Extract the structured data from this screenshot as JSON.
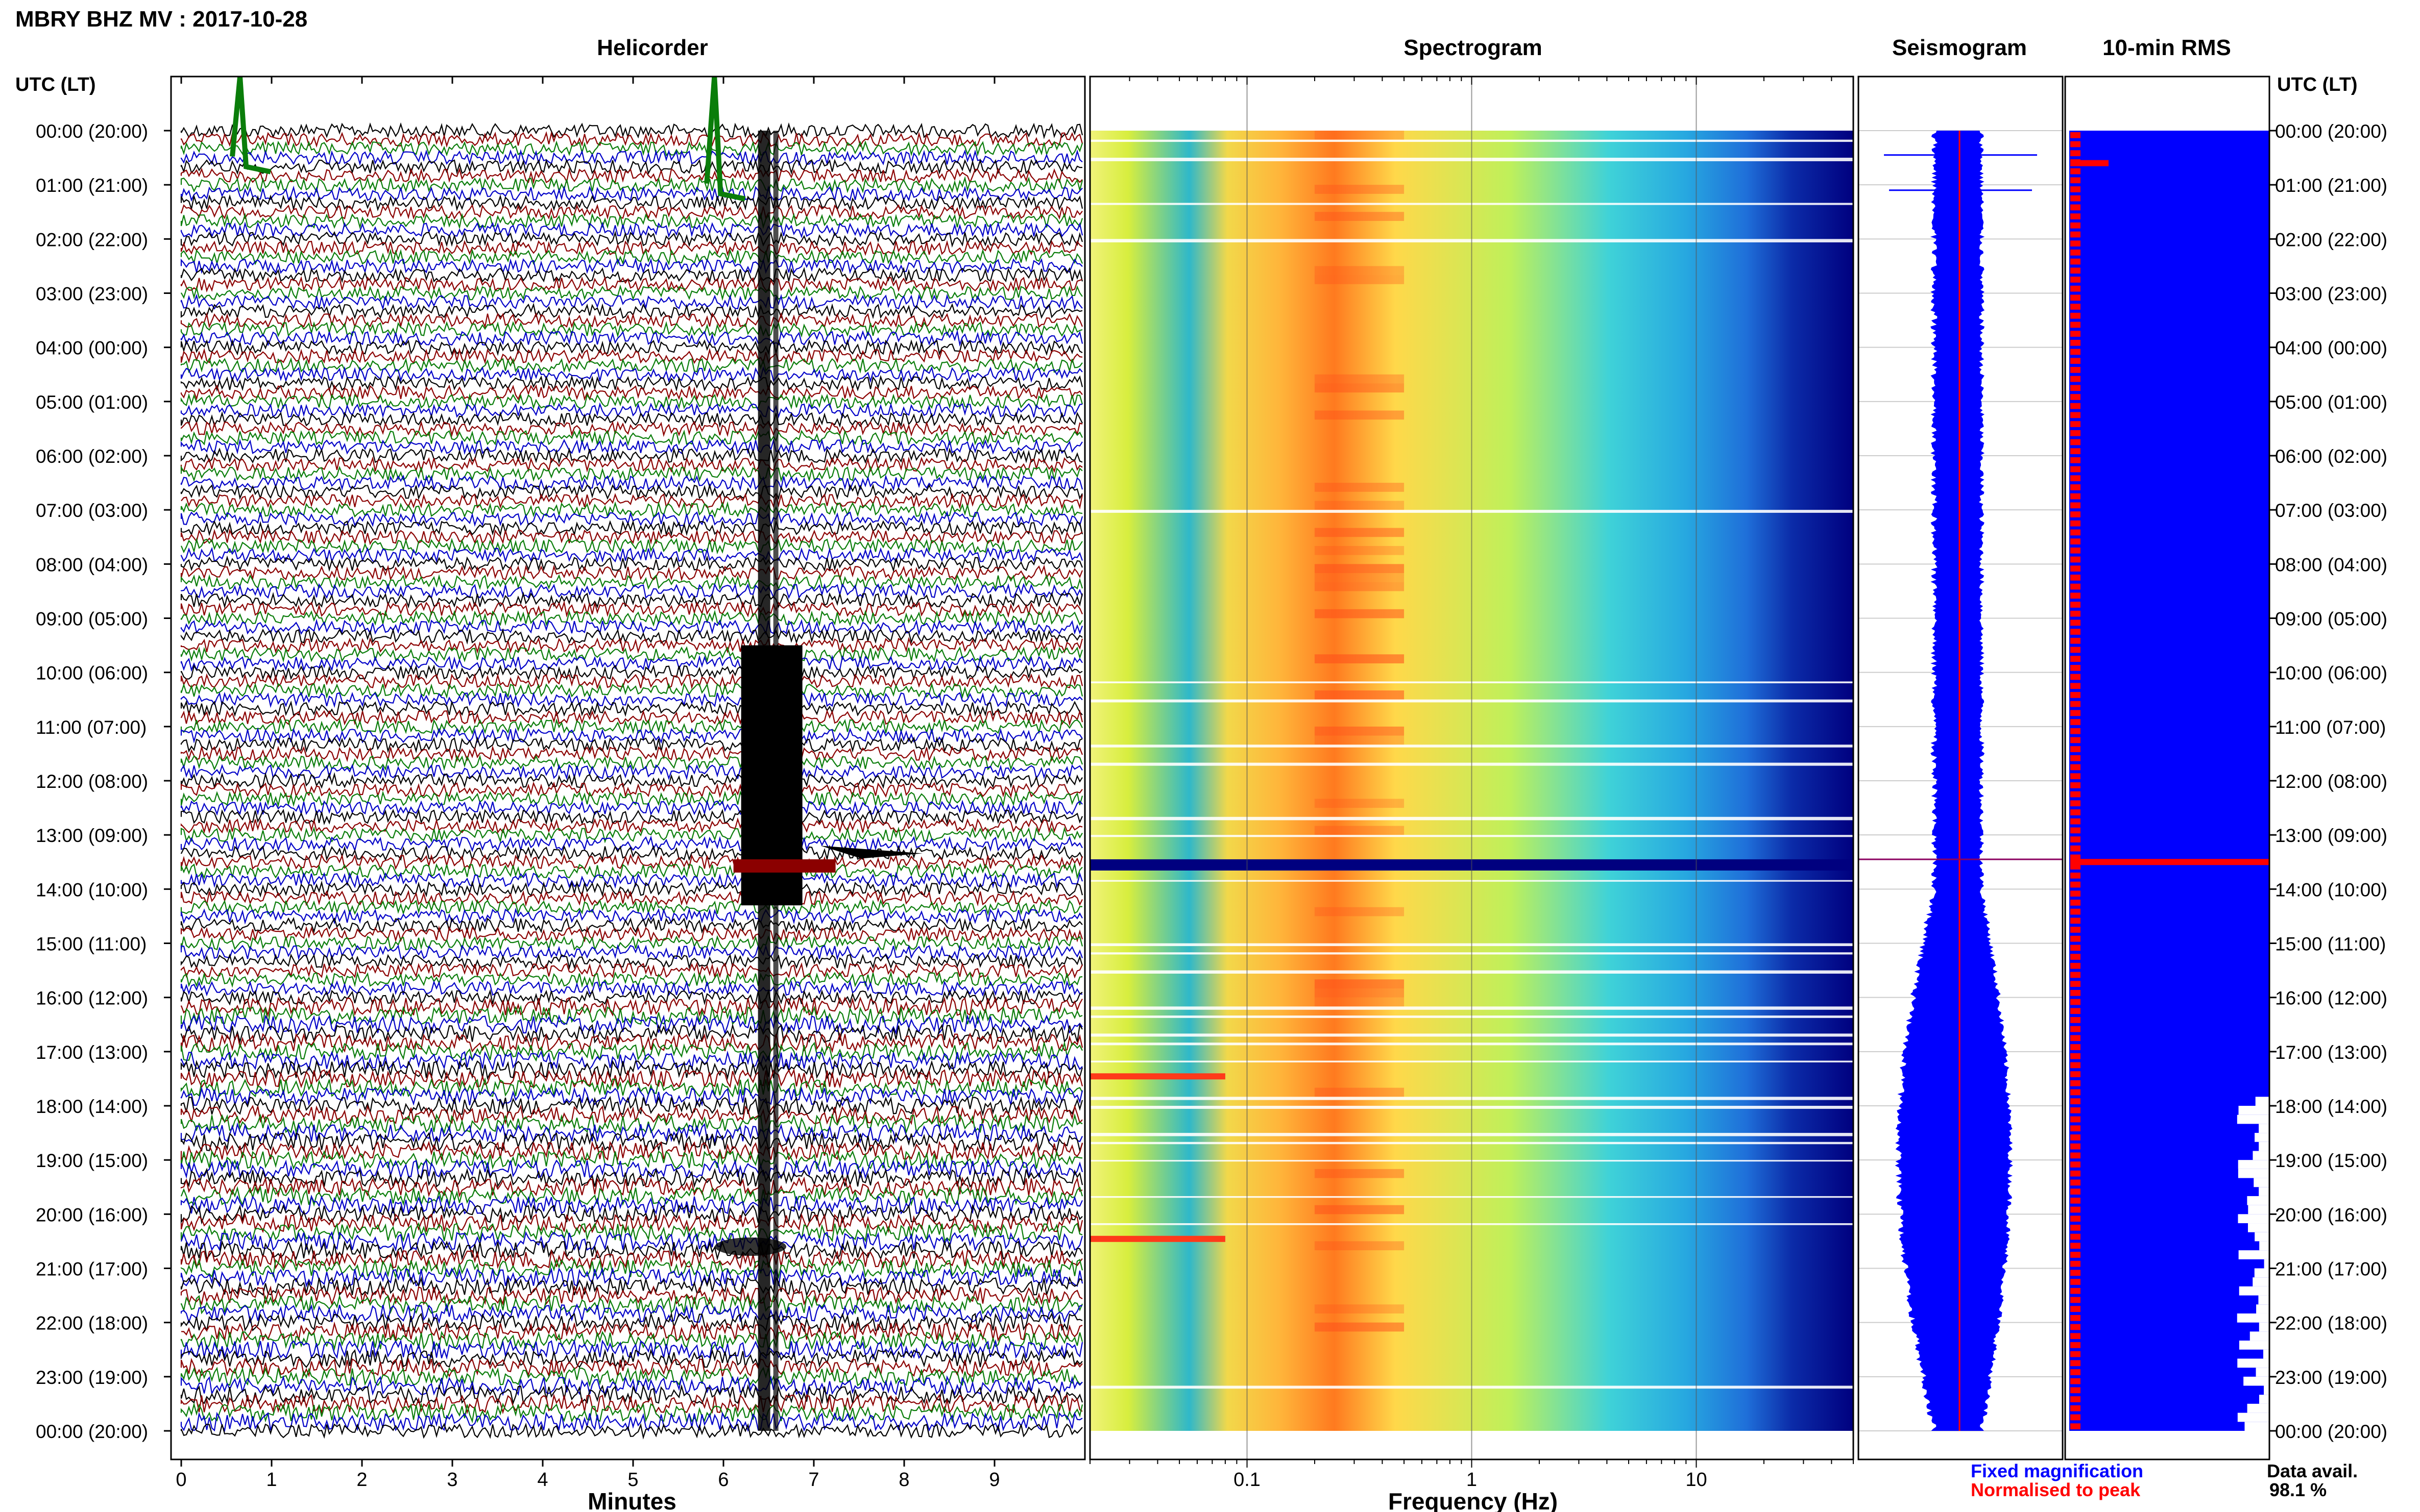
{
  "header": {
    "title": "MBRY BHZ MV : 2017-10-28",
    "utc_label_left": "UTC (LT)",
    "utc_label_right": "UTC (LT)"
  },
  "panels": {
    "helicorder_title": "Helicorder",
    "spectrogram_title": "Spectrogram",
    "seismogram_title": "Seismogram",
    "rms_title": "10-min RMS"
  },
  "colors": {
    "trace_cycle": [
      "#000000",
      "#8b0000",
      "#0a7d0a",
      "#0000c8"
    ],
    "fixed": "#0000ff",
    "normalised": "#ff0000",
    "spectrogram_low": "#00007f",
    "spectrogram_high": "#ff6a00"
  },
  "legend": {
    "fixed": "Fixed magnification",
    "normalised": "Normalised to peak",
    "avail_label": "Data avail.",
    "avail_value": "98.1 %"
  },
  "chart_data": [
    {
      "type": "line",
      "name": "helicorder",
      "title": "Helicorder",
      "xlabel": "Minutes",
      "x_ticks": [
        "0",
        "1",
        "2",
        "3",
        "4",
        "5",
        "6",
        "7",
        "8",
        "9"
      ],
      "xlim": [
        0,
        10
      ],
      "y_ticks": [
        "00:00 (20:00)",
        "01:00 (21:00)",
        "02:00 (22:00)",
        "03:00 (23:00)",
        "04:00 (00:00)",
        "05:00 (01:00)",
        "06:00 (02:00)",
        "07:00 (03:00)",
        "08:00 (04:00)",
        "09:00 (05:00)",
        "10:00 (06:00)",
        "11:00 (07:00)",
        "12:00 (08:00)",
        "13:00 (09:00)",
        "14:00 (10:00)",
        "15:00 (11:00)",
        "16:00 (12:00)",
        "17:00 (13:00)",
        "18:00 (14:00)",
        "19:00 (15:00)",
        "20:00 (16:00)",
        "21:00 (17:00)",
        "22:00 (18:00)",
        "23:00 (19:00)",
        "00:00 (20:00)"
      ],
      "lines_per_hour": 6,
      "events": [
        {
          "minute": 0.65,
          "hour": 0.1
        },
        {
          "minute": 5.9,
          "hour": 0.6
        },
        {
          "minute": 6.45,
          "hour": 12.6
        },
        {
          "minute": 7.3,
          "hour": 13.2
        },
        {
          "minute": 6.3,
          "hour": 20.6
        }
      ]
    },
    {
      "type": "heatmap",
      "name": "spectrogram",
      "title": "Spectrogram",
      "xlabel": "Frequency (Hz)",
      "x_scale": "log",
      "xlim": [
        0.02,
        50
      ],
      "x_ticks": [
        "0.1",
        "1",
        "10"
      ]
    },
    {
      "type": "line",
      "name": "seismogram",
      "title": "Seismogram",
      "series": [
        {
          "name": "Fixed magnification"
        },
        {
          "name": "Normalised to peak"
        }
      ]
    },
    {
      "type": "bar",
      "name": "rms",
      "title": "10-min RMS",
      "spike_hours": [
        0.6,
        13.5
      ]
    }
  ]
}
